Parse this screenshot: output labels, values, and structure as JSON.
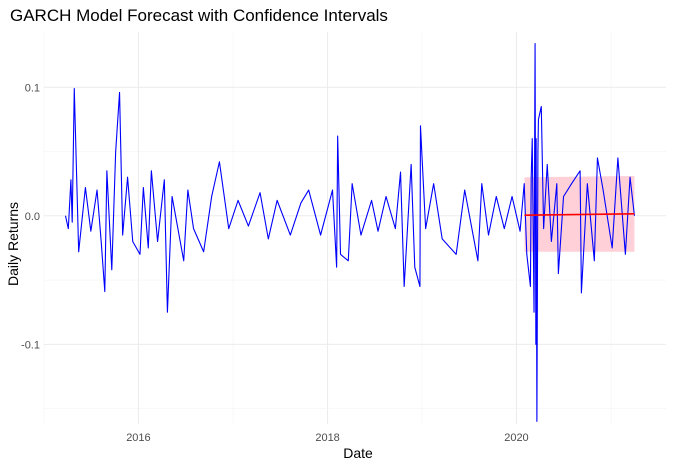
{
  "chart_data": {
    "type": "line",
    "title": "GARCH Model Forecast with Confidence Intervals",
    "xlabel": "Date",
    "ylabel": "Daily Returns",
    "x_ticks": [
      "2016",
      "2018",
      "2020"
    ],
    "y_ticks": [
      "-0.1",
      "0.0",
      "0.1"
    ],
    "xlim": [
      "2015-01-01",
      "2021-08-01"
    ],
    "ylim": [
      -0.162,
      0.143
    ],
    "grid": true,
    "series": [
      {
        "color": "#0000ff",
        "x": [
          "2015-03-25",
          "2015-04-05",
          "2015-04-15",
          "2015-04-20",
          "2015-04-28",
          "2015-05-15",
          "2015-06-10",
          "2015-07-01",
          "2015-07-25",
          "2015-08-10",
          "2015-08-24",
          "2015-09-01",
          "2015-09-20",
          "2015-10-05",
          "2015-10-20",
          "2015-11-01",
          "2015-11-20",
          "2015-12-10",
          "2016-01-07",
          "2016-01-20",
          "2016-02-08",
          "2016-02-20",
          "2016-03-15",
          "2016-04-10",
          "2016-04-22",
          "2016-05-10",
          "2016-06-24",
          "2016-07-10",
          "2016-08-01",
          "2016-09-09",
          "2016-10-10",
          "2016-11-09",
          "2016-12-15",
          "2017-01-20",
          "2017-03-01",
          "2017-04-15",
          "2017-05-17",
          "2017-06-20",
          "2017-08-10",
          "2017-09-20",
          "2017-10-20",
          "2017-12-05",
          "2018-01-20",
          "2018-02-05",
          "2018-02-09",
          "2018-02-20",
          "2018-03-22",
          "2018-04-06",
          "2018-05-10",
          "2018-06-20",
          "2018-07-15",
          "2018-08-15",
          "2018-09-20",
          "2018-10-10",
          "2018-10-24",
          "2018-11-20",
          "2018-12-04",
          "2018-12-24",
          "2018-12-26",
          "2019-01-15",
          "2019-02-15",
          "2019-03-20",
          "2019-05-13",
          "2019-06-15",
          "2019-08-05",
          "2019-08-20",
          "2019-09-15",
          "2019-10-15",
          "2019-11-15",
          "2019-12-15",
          "2020-01-15",
          "2020-01-31",
          "2020-02-10",
          "2020-02-24",
          "2020-02-27",
          "2020-03-02",
          "2020-03-09",
          "2020-03-12",
          "2020-03-13",
          "2020-03-16",
          "2020-03-17",
          "2020-03-20",
          "2020-03-24",
          "2020-03-26",
          "2020-04-06",
          "2020-04-15",
          "2020-04-29",
          "2020-05-15",
          "2020-06-05",
          "2020-06-11",
          "2020-07-01",
          "2020-08-01",
          "2020-09-03",
          "2020-09-08",
          "2020-10-01",
          "2020-10-28",
          "2020-11-09",
          "2020-12-01",
          "2021-01-05",
          "2021-01-27",
          "2021-02-25",
          "2021-03-15",
          "2021-04-01"
        ],
        "values": [
          0.0,
          -0.01,
          0.028,
          -0.005,
          0.099,
          -0.028,
          0.022,
          -0.012,
          0.02,
          -0.02,
          -0.059,
          0.035,
          -0.042,
          0.05,
          0.096,
          -0.015,
          0.03,
          -0.02,
          -0.03,
          0.022,
          -0.025,
          0.035,
          -0.02,
          0.028,
          -0.075,
          0.015,
          -0.035,
          0.02,
          -0.01,
          -0.028,
          0.015,
          0.042,
          -0.01,
          0.012,
          -0.008,
          0.018,
          -0.018,
          0.012,
          -0.015,
          0.01,
          0.02,
          -0.015,
          0.02,
          -0.04,
          0.062,
          -0.03,
          -0.035,
          0.025,
          -0.015,
          0.012,
          -0.012,
          0.015,
          -0.01,
          0.034,
          -0.055,
          0.04,
          -0.04,
          -0.055,
          0.07,
          -0.01,
          0.025,
          -0.018,
          -0.03,
          0.02,
          -0.035,
          0.025,
          -0.015,
          0.015,
          -0.01,
          0.015,
          -0.012,
          0.025,
          -0.03,
          -0.055,
          0.03,
          0.06,
          -0.075,
          0.09,
          0.134,
          -0.1,
          0.06,
          -0.16,
          0.05,
          0.075,
          0.085,
          -0.01,
          0.04,
          -0.02,
          0.025,
          -0.045,
          0.015,
          0.025,
          0.035,
          -0.06,
          0.025,
          -0.035,
          0.045,
          0.02,
          -0.025,
          0.045,
          -0.03,
          0.03,
          0.0
        ]
      },
      {
        "color": "#ff0000",
        "x": [
          "2020-02-01",
          "2021-04-01"
        ],
        "values": [
          0.0005,
          0.0015
        ]
      }
    ],
    "bands": [
      {
        "color": "#ffc0cb",
        "x": [
          "2020-02-01",
          "2021-04-01"
        ],
        "lower": [
          -0.028,
          -0.028
        ],
        "upper": [
          0.03,
          0.031
        ]
      }
    ]
  }
}
